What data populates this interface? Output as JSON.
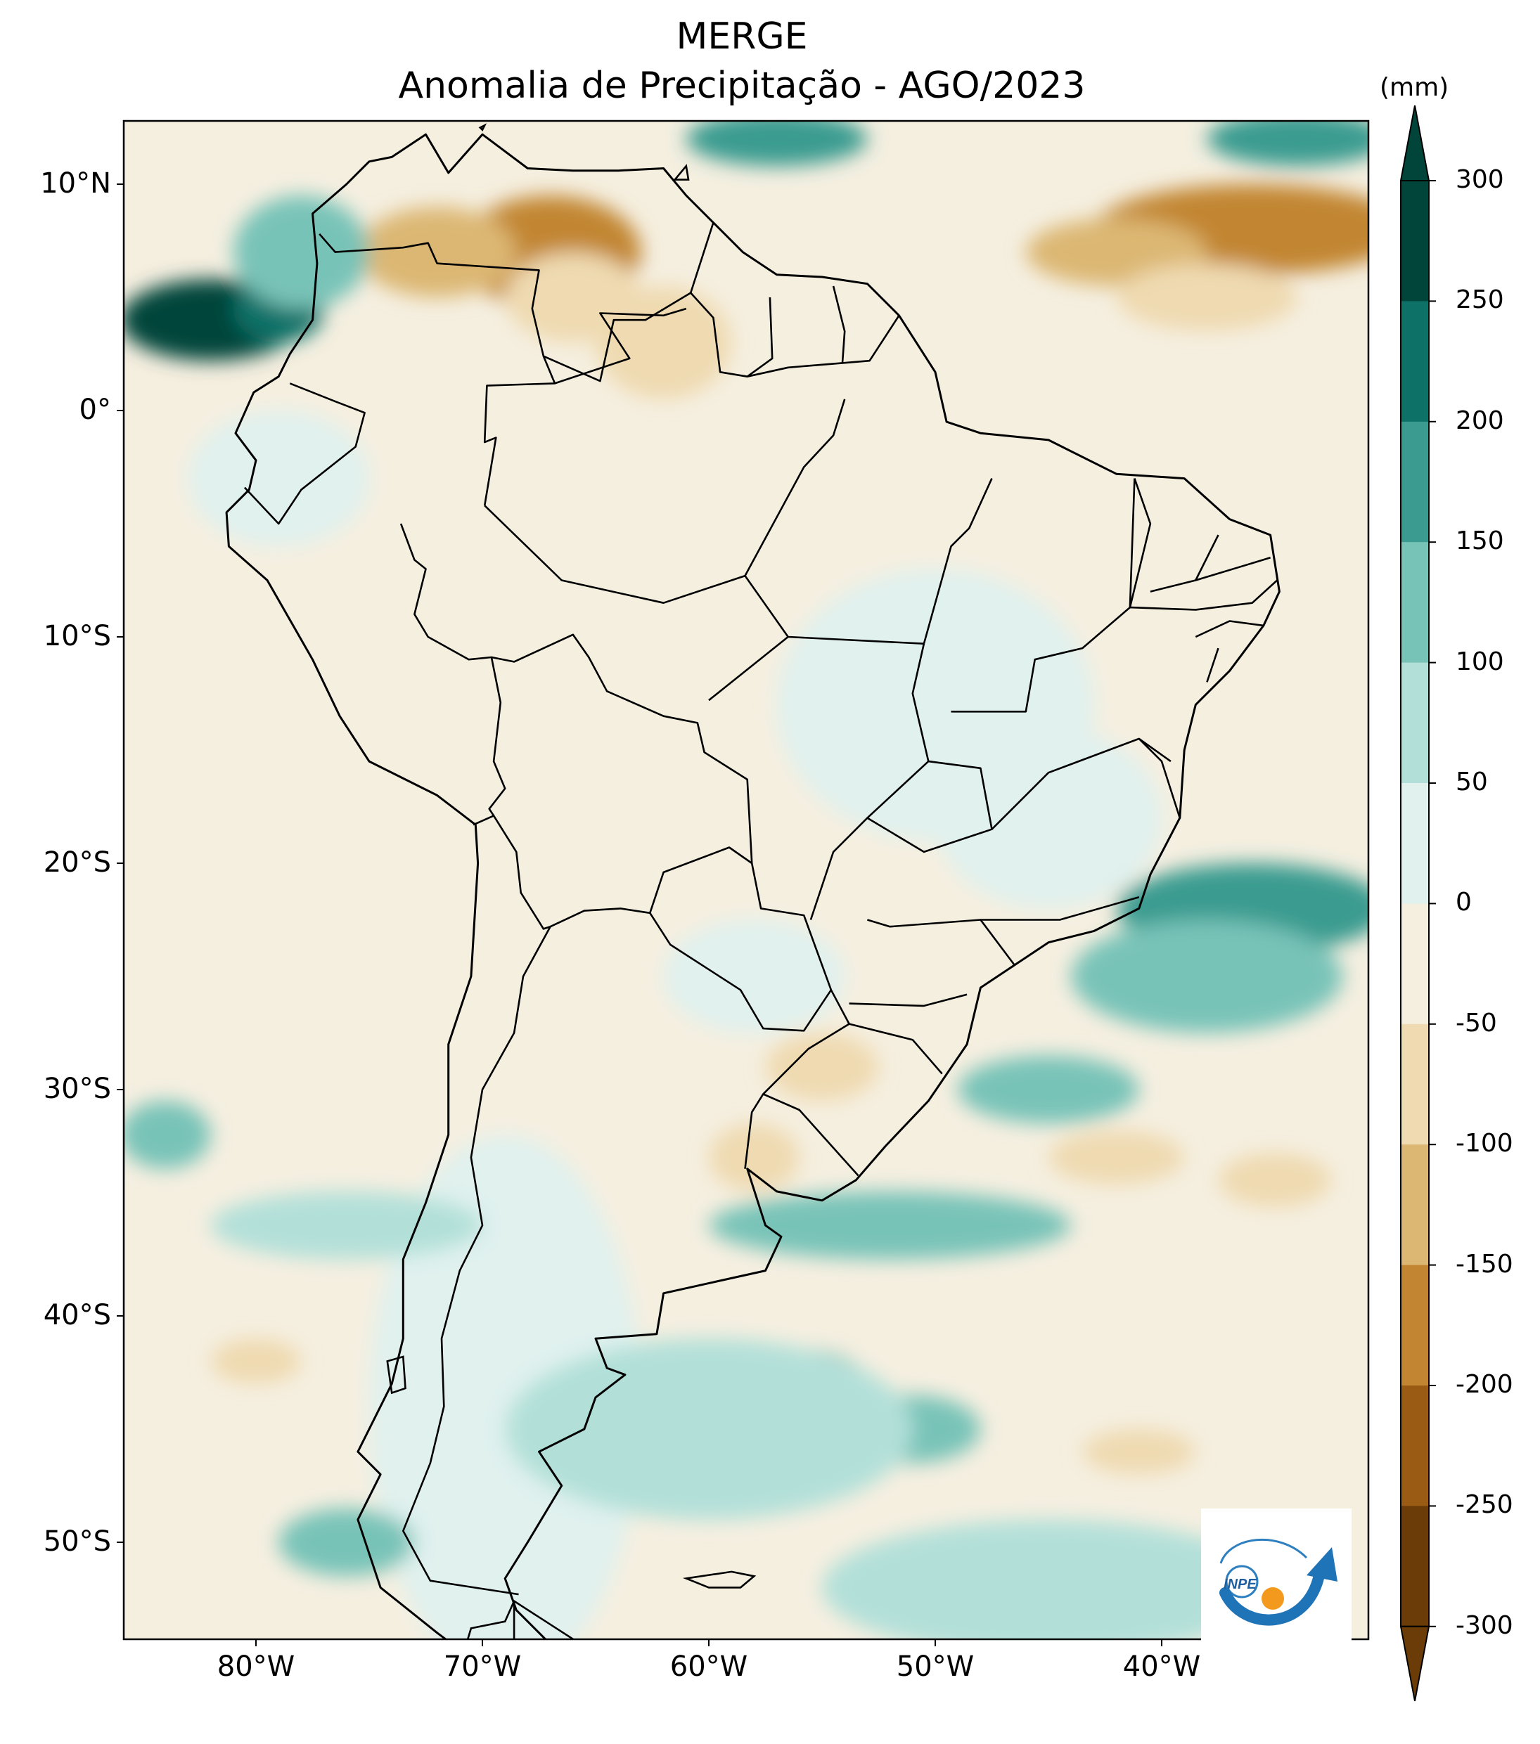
{
  "title": {
    "line1": "MERGE",
    "line2": "Anomalia de Precipitação - AGO/2023"
  },
  "map": {
    "region": "South America",
    "lon_range": [
      -85,
      -30
    ],
    "lat_range": [
      -56,
      13
    ],
    "lat_ticks": [
      "10°N",
      "0°",
      "10°S",
      "20°S",
      "30°S",
      "40°S",
      "50°S"
    ],
    "lon_ticks": [
      "80°W",
      "70°W",
      "60°W",
      "50°W",
      "40°W"
    ],
    "ocean_color": "#f5efe0",
    "border_color": "#000000"
  },
  "colorbar": {
    "unit": "(mm)",
    "levels": [
      "300",
      "250",
      "200",
      "150",
      "100",
      "50",
      "0",
      "-50",
      "-100",
      "-150",
      "-200",
      "-250",
      "-300"
    ],
    "colors": [
      "#01453a",
      "#0e7168",
      "#3b9b90",
      "#78c3b8",
      "#b2e0d9",
      "#e0f1ee",
      "#f5efe0",
      "#efdab1",
      "#dcb773",
      "#c28632",
      "#9a5c14",
      "#6b3c08"
    ]
  },
  "anomalies": [
    {
      "lon": -67,
      "lat": 7,
      "rx": 4,
      "ry": 2.5,
      "color": "#c28632"
    },
    {
      "lon": -72,
      "lat": 7,
      "rx": 3.5,
      "ry": 2,
      "color": "#dcb773"
    },
    {
      "lon": -66,
      "lat": 5,
      "rx": 3,
      "ry": 2,
      "color": "#efdab1"
    },
    {
      "lon": -62,
      "lat": 3,
      "rx": 3,
      "ry": 2.5,
      "color": "#efdab1"
    },
    {
      "lon": -36,
      "lat": 8,
      "rx": 7,
      "ry": 2,
      "color": "#c28632"
    },
    {
      "lon": -42,
      "lat": 7,
      "rx": 4,
      "ry": 1.5,
      "color": "#dcb773"
    },
    {
      "lon": -38,
      "lat": 5,
      "rx": 4,
      "ry": 1.5,
      "color": "#efdab1"
    },
    {
      "lon": -82,
      "lat": 4,
      "rx": 4,
      "ry": 1.8,
      "color": "#01453a"
    },
    {
      "lon": -79,
      "lat": 4.5,
      "rx": 2,
      "ry": 1.5,
      "color": "#0e7168"
    },
    {
      "lon": -78,
      "lat": 7,
      "rx": 3,
      "ry": 2.5,
      "color": "#78c3b8"
    },
    {
      "lon": -57,
      "lat": 12,
      "rx": 4,
      "ry": 1.2,
      "color": "#3b9b90"
    },
    {
      "lon": -34,
      "lat": 12,
      "rx": 4,
      "ry": 1.2,
      "color": "#3b9b90"
    },
    {
      "lon": -50,
      "lat": -13,
      "rx": 7,
      "ry": 6,
      "color": "#e0f1ee"
    },
    {
      "lon": -45,
      "lat": -18,
      "rx": 5,
      "ry": 4,
      "color": "#e0f1ee"
    },
    {
      "lon": -58,
      "lat": -25,
      "rx": 4,
      "ry": 2.5,
      "color": "#e0f1ee"
    },
    {
      "lon": -79,
      "lat": -3,
      "rx": 4,
      "ry": 3,
      "color": "#e0f1ee"
    },
    {
      "lon": -69,
      "lat": -44,
      "rx": 6,
      "ry": 12,
      "color": "#e0f1ee"
    },
    {
      "lon": -36,
      "lat": -22,
      "rx": 6,
      "ry": 2,
      "color": "#3b9b90"
    },
    {
      "lon": -38,
      "lat": -25,
      "rx": 6,
      "ry": 2.5,
      "color": "#78c3b8"
    },
    {
      "lon": -45,
      "lat": -30,
      "rx": 4,
      "ry": 1.5,
      "color": "#78c3b8"
    },
    {
      "lon": -52,
      "lat": -36,
      "rx": 8,
      "ry": 1.5,
      "color": "#78c3b8"
    },
    {
      "lon": -56,
      "lat": -43,
      "rx": 3,
      "ry": 1.5,
      "color": "#3b9b90"
    },
    {
      "lon": -51,
      "lat": -45,
      "rx": 3,
      "ry": 1.5,
      "color": "#78c3b8"
    },
    {
      "lon": -60,
      "lat": -45,
      "rx": 9,
      "ry": 4,
      "color": "#b2e0d9"
    },
    {
      "lon": -45,
      "lat": -52,
      "rx": 10,
      "ry": 3,
      "color": "#b2e0d9"
    },
    {
      "lon": -76,
      "lat": -36,
      "rx": 6,
      "ry": 1.5,
      "color": "#b2e0d9"
    },
    {
      "lon": -84,
      "lat": -32,
      "rx": 2,
      "ry": 1.5,
      "color": "#78c3b8"
    },
    {
      "lon": -76,
      "lat": -50,
      "rx": 3,
      "ry": 1.5,
      "color": "#78c3b8"
    },
    {
      "lon": -55,
      "lat": -29,
      "rx": 2.5,
      "ry": 1.5,
      "color": "#efdab1"
    },
    {
      "lon": -58,
      "lat": -33,
      "rx": 2,
      "ry": 1.5,
      "color": "#efdab1"
    },
    {
      "lon": -42,
      "lat": -33,
      "rx": 3,
      "ry": 1.2,
      "color": "#efdab1"
    },
    {
      "lon": -35,
      "lat": -34,
      "rx": 2.5,
      "ry": 1.2,
      "color": "#efdab1"
    },
    {
      "lon": -80,
      "lat": -42,
      "rx": 2,
      "ry": 1,
      "color": "#efdab1"
    },
    {
      "lon": -41,
      "lat": -46,
      "rx": 2.5,
      "ry": 1,
      "color": "#efdab1"
    }
  ],
  "continent_outline": [
    [
      -77.5,
      8.7
    ],
    [
      -76,
      10
    ],
    [
      -75,
      11
    ],
    [
      -74,
      11.2
    ],
    [
      -72.5,
      12.2
    ],
    [
      -71.5,
      10.5
    ],
    [
      -70,
      12.2
    ],
    [
      -68,
      10.7
    ],
    [
      -66,
      10.6
    ],
    [
      -64,
      10.6
    ],
    [
      -62,
      10.7
    ],
    [
      -61,
      9.5
    ],
    [
      -59.8,
      8.3
    ],
    [
      -58.5,
      7
    ],
    [
      -57,
      6
    ],
    [
      -55,
      5.9
    ],
    [
      -53,
      5.6
    ],
    [
      -51.6,
      4.2
    ],
    [
      -50,
      1.7
    ],
    [
      -49.5,
      -0.5
    ],
    [
      -48,
      -1
    ],
    [
      -45,
      -1.3
    ],
    [
      -42,
      -2.8
    ],
    [
      -39,
      -3
    ],
    [
      -37,
      -4.8
    ],
    [
      -35.2,
      -5.5
    ],
    [
      -34.8,
      -8
    ],
    [
      -35.5,
      -9.5
    ],
    [
      -37,
      -11.5
    ],
    [
      -38.5,
      -13
    ],
    [
      -39,
      -15
    ],
    [
      -39.2,
      -18
    ],
    [
      -40.5,
      -20.5
    ],
    [
      -41,
      -22
    ],
    [
      -43,
      -23
    ],
    [
      -45,
      -23.5
    ],
    [
      -48,
      -25.5
    ],
    [
      -48.6,
      -28
    ],
    [
      -50.3,
      -30.5
    ],
    [
      -52.2,
      -32.5
    ],
    [
      -53.5,
      -34
    ],
    [
      -55,
      -34.9
    ],
    [
      -57,
      -34.5
    ],
    [
      -58.3,
      -33.5
    ],
    [
      -57.5,
      -36
    ],
    [
      -56.8,
      -36.5
    ],
    [
      -57.5,
      -38
    ],
    [
      -62,
      -39
    ],
    [
      -62.3,
      -40.8
    ],
    [
      -65,
      -41
    ],
    [
      -64.5,
      -42.3
    ],
    [
      -63.7,
      -42.6
    ],
    [
      -65,
      -43.6
    ],
    [
      -65.5,
      -45
    ],
    [
      -67.5,
      -46
    ],
    [
      -66.5,
      -47.5
    ],
    [
      -68,
      -50
    ],
    [
      -69,
      -51.6
    ],
    [
      -68.5,
      -53
    ],
    [
      -67,
      -54.5
    ],
    [
      -65.5,
      -55
    ],
    [
      -68,
      -55.4
    ],
    [
      -70,
      -55.5
    ],
    [
      -72,
      -54
    ],
    [
      -74.5,
      -52
    ],
    [
      -75.5,
      -49
    ],
    [
      -74.5,
      -47
    ],
    [
      -75.5,
      -46
    ],
    [
      -74,
      -43
    ],
    [
      -73.5,
      -41
    ],
    [
      -73.5,
      -37.5
    ],
    [
      -72.5,
      -35
    ],
    [
      -71.5,
      -32
    ],
    [
      -71.5,
      -28
    ],
    [
      -70.5,
      -25
    ],
    [
      -70.2,
      -20
    ],
    [
      -70.3,
      -18.3
    ],
    [
      -72,
      -17
    ],
    [
      -75,
      -15.5
    ],
    [
      -76.3,
      -13.5
    ],
    [
      -77.5,
      -11
    ],
    [
      -79.5,
      -7.5
    ],
    [
      -81.2,
      -6
    ],
    [
      -81.3,
      -4.5
    ],
    [
      -80.3,
      -3.5
    ],
    [
      -80,
      -2.2
    ],
    [
      -80.9,
      -1
    ],
    [
      -80.1,
      0.8
    ],
    [
      -79,
      1.5
    ],
    [
      -78.5,
      2.5
    ],
    [
      -77.5,
      4
    ],
    [
      -77.3,
      6.5
    ],
    [
      -77.5,
      8.7
    ]
  ],
  "borders": [
    [
      [
        -77.2,
        7.8
      ],
      [
        -76.5,
        7.0
      ],
      [
        -73.5,
        7.2
      ],
      [
        -72.4,
        7.4
      ],
      [
        -72,
        6.5
      ],
      [
        -67.5,
        6.2
      ],
      [
        -67.8,
        4.5
      ],
      [
        -67.3,
        2.4
      ],
      [
        -66.8,
        1.2
      ],
      [
        -69.8,
        1.1
      ],
      [
        -69.9,
        -1.4
      ],
      [
        -69.4,
        -1.2
      ],
      [
        -69.9,
        -4.2
      ]
    ],
    [
      [
        -78.5,
        1.2
      ],
      [
        -76.5,
        0.4
      ],
      [
        -75.2,
        -0.1
      ],
      [
        -75.6,
        -1.6
      ],
      [
        -78,
        -3.5
      ],
      [
        -79,
        -5
      ],
      [
        -80.5,
        -3.4
      ]
    ],
    [
      [
        -73.6,
        -5
      ],
      [
        -73,
        -6.6
      ],
      [
        -72.5,
        -7
      ],
      [
        -73,
        -9
      ],
      [
        -72.4,
        -10
      ],
      [
        -70.6,
        -11
      ],
      [
        -69.6,
        -10.9
      ],
      [
        -69.2,
        -12.9
      ],
      [
        -69.5,
        -15.5
      ],
      [
        -69,
        -16.7
      ],
      [
        -69.7,
        -17.6
      ],
      [
        -69.5,
        -17.9
      ],
      [
        -70.4,
        -18.3
      ]
    ],
    [
      [
        -69.5,
        -17.9
      ],
      [
        -68.5,
        -19.5
      ],
      [
        -68.3,
        -21.3
      ],
      [
        -67.3,
        -22.9
      ],
      [
        -67,
        -22.8
      ],
      [
        -68.2,
        -25
      ],
      [
        -68.6,
        -27.5
      ],
      [
        -70,
        -30
      ],
      [
        -70.5,
        -33
      ],
      [
        -70,
        -36
      ],
      [
        -71,
        -38
      ],
      [
        -71.8,
        -41
      ],
      [
        -71.7,
        -44
      ],
      [
        -72.3,
        -46.5
      ],
      [
        -73.5,
        -49.5
      ],
      [
        -72.3,
        -51.7
      ],
      [
        -68.4,
        -52.3
      ]
    ],
    [
      [
        -68.6,
        -52.6
      ],
      [
        -68.6,
        -55
      ]
    ],
    [
      [
        -67,
        -22.8
      ],
      [
        -65.5,
        -22.1
      ],
      [
        -63.9,
        -22
      ],
      [
        -62.6,
        -22.2
      ],
      [
        -61.7,
        -23.6
      ],
      [
        -58.6,
        -25.6
      ],
      [
        -57.6,
        -27.3
      ],
      [
        -55.8,
        -27.4
      ],
      [
        -54.6,
        -25.6
      ]
    ],
    [
      [
        -62.6,
        -22.2
      ],
      [
        -62,
        -20.4
      ],
      [
        -59.1,
        -19.3
      ],
      [
        -58.1,
        -20
      ],
      [
        -57.7,
        -22
      ],
      [
        -55.8,
        -22.3
      ],
      [
        -54.6,
        -25.6
      ],
      [
        -53.8,
        -27.1
      ],
      [
        -55.6,
        -28.2
      ],
      [
        -57.6,
        -30.2
      ],
      [
        -56,
        -30.9
      ],
      [
        -53.4,
        -33.8
      ]
    ],
    [
      [
        -58.4,
        -33.5
      ],
      [
        -58.1,
        -31
      ],
      [
        -57.6,
        -30.2
      ]
    ],
    [
      [
        -69.6,
        -10.9
      ],
      [
        -68.6,
        -11.1
      ],
      [
        -66,
        -9.9
      ],
      [
        -65.3,
        -10.9
      ],
      [
        -64.5,
        -12.4
      ],
      [
        -62,
        -13.5
      ],
      [
        -60.5,
        -13.8
      ],
      [
        -60.2,
        -15.1
      ],
      [
        -58.3,
        -16.3
      ],
      [
        -58.1,
        -20
      ]
    ],
    [
      [
        -67.3,
        2.4
      ],
      [
        -64.8,
        1.3
      ],
      [
        -64.2,
        4
      ],
      [
        -62.8,
        4
      ],
      [
        -60.8,
        5.2
      ],
      [
        -59.8,
        8.3
      ]
    ],
    [
      [
        -60.8,
        5.2
      ],
      [
        -59.8,
        4.1
      ],
      [
        -59.5,
        1.7
      ],
      [
        -58.3,
        1.5
      ],
      [
        -56.5,
        1.9
      ],
      [
        -54.1,
        2.1
      ],
      [
        -52.9,
        2.2
      ],
      [
        -51.6,
        4.2
      ]
    ],
    [
      [
        -58.3,
        1.5
      ],
      [
        -57.2,
        2.3
      ],
      [
        -57.3,
        5
      ]
    ],
    [
      [
        -54.1,
        2.1
      ],
      [
        -54,
        3.5
      ],
      [
        -54.5,
        5.5
      ]
    ],
    [
      [
        -66.8,
        1.2
      ],
      [
        -63.5,
        2.3
      ],
      [
        -64.8,
        4.3
      ],
      [
        -62,
        4.2
      ],
      [
        -61,
        4.5
      ]
    ],
    [
      [
        -69.9,
        -4.2
      ],
      [
        -66.5,
        -7.5
      ],
      [
        -62,
        -8.5
      ],
      [
        -58.4,
        -7.3
      ],
      [
        -56.5,
        -10
      ],
      [
        -50.5,
        -10.3
      ]
    ],
    [
      [
        -58.4,
        -7.3
      ],
      [
        -55.8,
        -2.5
      ],
      [
        -54.5,
        -1.1
      ],
      [
        -54,
        0.5
      ]
    ],
    [
      [
        -50.5,
        -10.3
      ],
      [
        -49.3,
        -6
      ],
      [
        -48.5,
        -5.2
      ],
      [
        -47.5,
        -3
      ]
    ],
    [
      [
        -50.5,
        -10.3
      ],
      [
        -51,
        -12.5
      ],
      [
        -50.3,
        -15.5
      ],
      [
        -53,
        -18
      ],
      [
        -54.5,
        -19.5
      ],
      [
        -55.5,
        -22.5
      ]
    ],
    [
      [
        -56.5,
        -10
      ],
      [
        -60,
        -12.8
      ]
    ],
    [
      [
        -49.3,
        -13.3
      ],
      [
        -46,
        -13.3
      ],
      [
        -45.6,
        -11
      ],
      [
        -43.5,
        -10.5
      ],
      [
        -41.4,
        -8.7
      ],
      [
        -40.5,
        -5
      ],
      [
        -41.2,
        -3
      ]
    ],
    [
      [
        -50.3,
        -15.5
      ],
      [
        -48,
        -15.8
      ],
      [
        -47.5,
        -18.5
      ],
      [
        -50.5,
        -19.5
      ],
      [
        -53,
        -18
      ]
    ],
    [
      [
        -47.5,
        -18.5
      ],
      [
        -45,
        -16
      ],
      [
        -41,
        -14.5
      ],
      [
        -39.6,
        -15.5
      ]
    ],
    [
      [
        -48,
        -22.5
      ],
      [
        -45.5,
        -22.5
      ],
      [
        -44.5,
        -22.5
      ],
      [
        -41,
        -21.5
      ]
    ],
    [
      [
        -53,
        -22.5
      ],
      [
        -52,
        -22.8
      ],
      [
        -48,
        -22.5
      ],
      [
        -46.5,
        -24.5
      ]
    ],
    [
      [
        -53.8,
        -26.2
      ],
      [
        -50.5,
        -26.3
      ],
      [
        -48.6,
        -25.8
      ]
    ],
    [
      [
        -53.8,
        -27.1
      ],
      [
        -51,
        -27.8
      ],
      [
        -49.7,
        -29.3
      ]
    ],
    [
      [
        -41.2,
        -3
      ],
      [
        -41.4,
        -8.7
      ]
    ],
    [
      [
        -37.5,
        -5.5
      ],
      [
        -38.5,
        -7.5
      ],
      [
        -40.5,
        -8
      ]
    ],
    [
      [
        -35.2,
        -6.5
      ],
      [
        -37.5,
        -7.2
      ],
      [
        -38.5,
        -7.5
      ]
    ],
    [
      [
        -34.9,
        -7.5
      ],
      [
        -36,
        -8.5
      ],
      [
        -38.5,
        -8.8
      ],
      [
        -41.4,
        -8.7
      ]
    ],
    [
      [
        -35.5,
        -9.5
      ],
      [
        -37,
        -9.3
      ],
      [
        -38.5,
        -10
      ]
    ],
    [
      [
        -37.5,
        -10.5
      ],
      [
        -38,
        -12
      ]
    ],
    [
      [
        -39.2,
        -18
      ],
      [
        -40,
        -15.5
      ],
      [
        -41,
        -14.5
      ]
    ]
  ],
  "islands": [
    [
      [
        -68.6,
        -52.6
      ],
      [
        -69,
        -53.5
      ],
      [
        -70.5,
        -53.8
      ],
      [
        -70.8,
        -54.8
      ],
      [
        -69,
        -55
      ],
      [
        -67.5,
        -55
      ],
      [
        -66,
        -54.8
      ],
      [
        -65.5,
        -54.6
      ],
      [
        -68.6,
        -52.6
      ]
    ],
    [
      [
        -73.5,
        -41.8
      ],
      [
        -74.2,
        -42
      ],
      [
        -74,
        -43.4
      ],
      [
        -73.4,
        -43.2
      ],
      [
        -73.5,
        -41.8
      ]
    ],
    [
      [
        -59,
        -51.3
      ],
      [
        -58,
        -51.5
      ],
      [
        -58.6,
        -52
      ],
      [
        -60,
        -52
      ],
      [
        -61,
        -51.6
      ],
      [
        -59,
        -51.3
      ]
    ],
    [
      [
        -70.1,
        12.5
      ],
      [
        -69.9,
        12.6
      ],
      [
        -70,
        12.4
      ],
      [
        -70.1,
        12.5
      ]
    ],
    [
      [
        -61.5,
        10.2
      ],
      [
        -61.0,
        10.8
      ],
      [
        -60.9,
        10.2
      ],
      [
        -61.5,
        10.2
      ]
    ]
  ]
}
